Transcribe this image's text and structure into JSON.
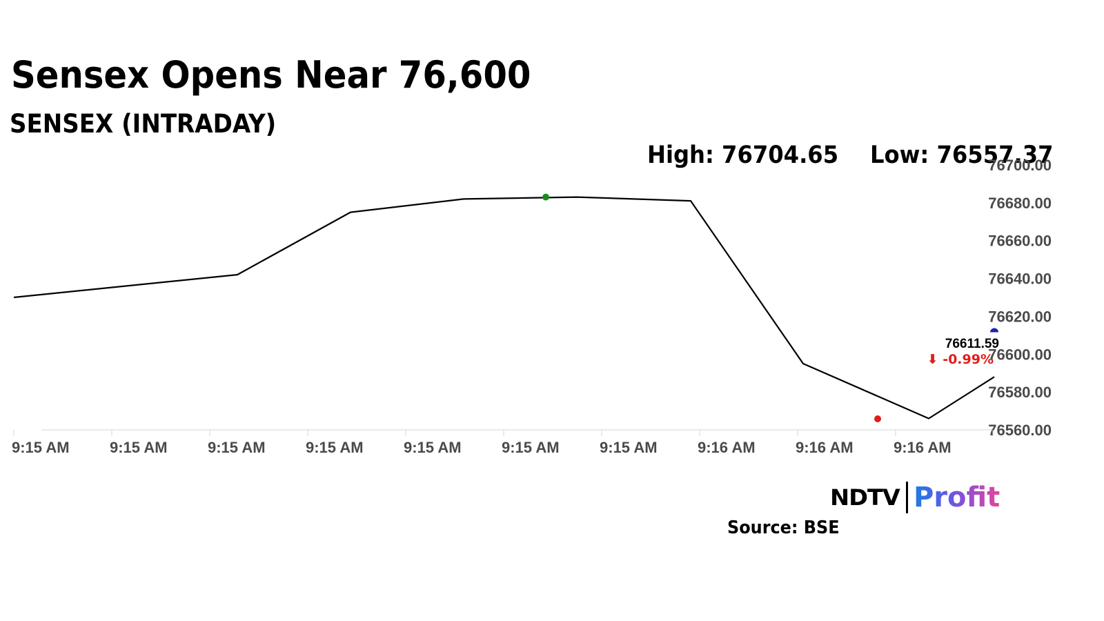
{
  "header": {
    "title": "Sensex Opens Near 76,600",
    "subtitle": "SENSEX (INTRADAY)",
    "high_text": "High: 76704.65",
    "low_text": "Low: 76557.37"
  },
  "chart_data": {
    "type": "line",
    "series": [
      {
        "values": [
          76630,
          76642,
          76675,
          76682,
          76683,
          76681,
          76595,
          76566,
          76588
        ]
      }
    ],
    "ylim": [
      76560,
      76700
    ],
    "y_ticks": [
      "76700.00",
      "76680.00",
      "76660.00",
      "76640.00",
      "76620.00",
      "76600.00",
      "76580.00",
      "76560.00"
    ],
    "x_ticks": [
      "9:15 AM",
      "9:15 AM",
      "9:15 AM",
      "9:15 AM",
      "9:15 AM",
      "9:15 AM",
      "9:15 AM",
      "9:16 AM",
      "9:16 AM",
      "9:16 AM"
    ],
    "markers": [
      {
        "name": "high-marker",
        "value": 76683,
        "color": "#1a8c1a"
      },
      {
        "name": "low-marker",
        "value": 76566,
        "color": "#e31b1b"
      },
      {
        "name": "last-marker",
        "value": 76611.59,
        "color": "#1c23b5"
      }
    ],
    "last_price": "76611.59",
    "change_text": "⬇ -0.99%",
    "line_color": "#000000",
    "change_color": "#e31b1b",
    "axis_color": "#d6d6d6",
    "grid": false
  },
  "footer": {
    "brand_ndtv": "NDTV",
    "brand_profit": "Profit",
    "source": "Source: BSE"
  }
}
